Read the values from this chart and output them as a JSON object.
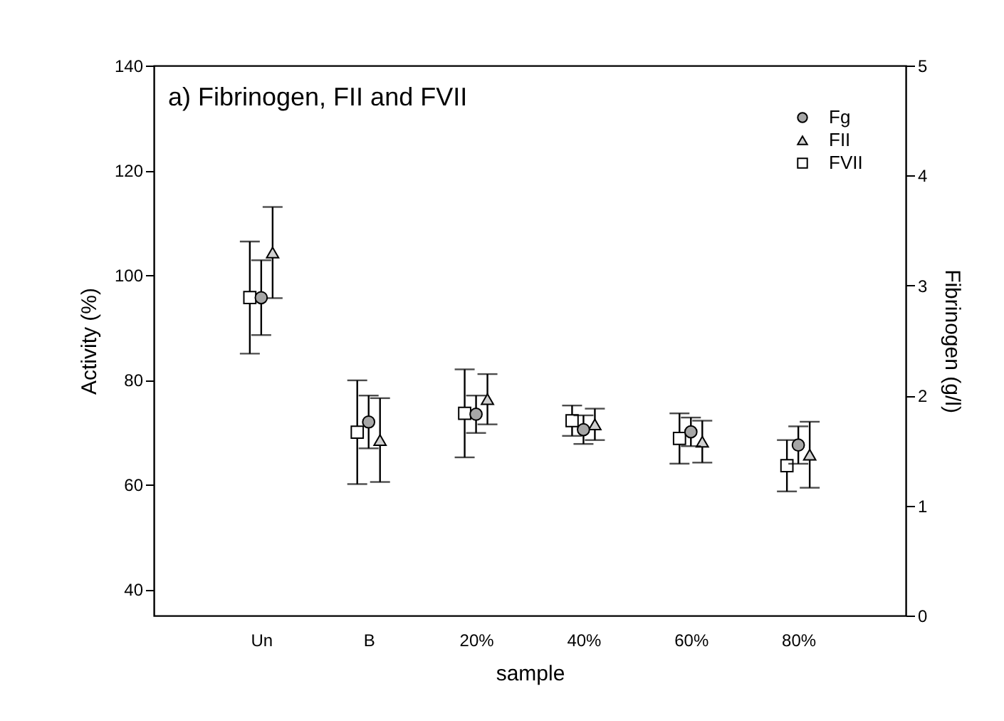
{
  "chart_data": {
    "type": "scatter",
    "title": "a) Fibrinogen, FII and FVII",
    "xlabel": "sample",
    "ylabel": "Activity (%)",
    "y2label": "Fibrinogen (g/l)",
    "categories": [
      "Un",
      "B",
      "20%",
      "40%",
      "60%",
      "80%"
    ],
    "series": [
      {
        "name": "Fg",
        "axis": "y2",
        "marker": "circle",
        "color": "#a6a6a6",
        "values": [
          2.89,
          1.76,
          1.83,
          1.69,
          1.67,
          1.55
        ],
        "errors": [
          0.34,
          0.24,
          0.17,
          0.13,
          0.13,
          0.17
        ]
      },
      {
        "name": "FII",
        "marker": "triangle",
        "color": "#d0d0d0",
        "values": [
          104.3,
          68.5,
          76.3,
          71.5,
          68.2,
          65.7
        ],
        "errors": [
          8.7,
          8,
          4.8,
          3,
          4,
          6.3
        ]
      },
      {
        "name": "FVII",
        "marker": "square",
        "color": "#ffffff",
        "values": [
          95.7,
          70,
          73.6,
          72.2,
          68.8,
          63.6
        ],
        "errors": [
          10.7,
          9.9,
          8.4,
          2.9,
          4.8,
          4.9
        ]
      }
    ],
    "ylim": [
      35,
      140
    ],
    "yticks": [
      40,
      60,
      80,
      100,
      120,
      140
    ],
    "y2lim": [
      0,
      5
    ],
    "y2ticks": [
      0,
      1,
      2,
      3,
      4,
      5
    ],
    "grid": false,
    "legend": "top right"
  }
}
